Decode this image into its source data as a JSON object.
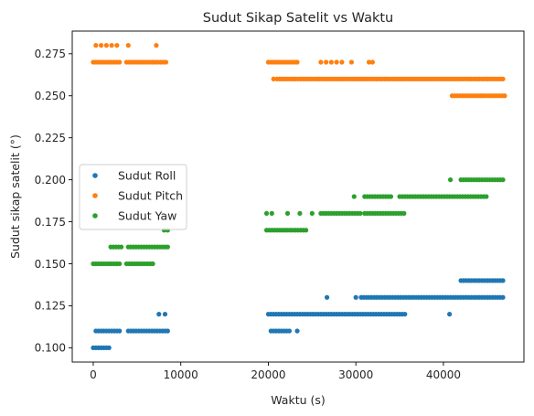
{
  "chart_data": {
    "type": "scatter",
    "title": "Sudut Sikap Satelit vs Waktu",
    "xlabel": "Waktu (s)",
    "ylabel": "Sudut sikap satelit (°)",
    "xlim": [
      -2400,
      49200
    ],
    "ylim": [
      0.0915,
      0.2885
    ],
    "xticks": [
      0,
      10000,
      20000,
      30000,
      40000
    ],
    "xtick_labels": [
      "0",
      "10000",
      "20000",
      "30000",
      "40000"
    ],
    "yticks": [
      0.1,
      0.125,
      0.15,
      0.175,
      0.2,
      0.225,
      0.25,
      0.275
    ],
    "ytick_labels": [
      "0.100",
      "0.125",
      "0.150",
      "0.175",
      "0.200",
      "0.225",
      "0.250",
      "0.275"
    ],
    "grid": false,
    "legend_position": "center-left",
    "series": [
      {
        "name": "Sudut Roll",
        "color": "#1f77b4",
        "segments": [
          {
            "x0": 0,
            "x1": 1800,
            "step": 300,
            "y": 0.1
          },
          {
            "x0": 300,
            "x1": 3200,
            "step": 300,
            "y": 0.11
          },
          {
            "x0": 4000,
            "x1": 8500,
            "step": 300,
            "y": 0.11
          },
          {
            "x0": 20000,
            "x1": 35600,
            "step": 300,
            "y": 0.12
          },
          {
            "x0": 20300,
            "x1": 22400,
            "step": 300,
            "y": 0.11
          },
          {
            "x0": 30600,
            "x1": 47000,
            "step": 300,
            "y": 0.13
          },
          {
            "x0": 42000,
            "x1": 47000,
            "step": 300,
            "y": 0.14
          }
        ],
        "points": [
          [
            7500,
            0.12
          ],
          [
            8200,
            0.12
          ],
          [
            23300,
            0.11
          ],
          [
            26700,
            0.13
          ],
          [
            30000,
            0.13
          ],
          [
            40700,
            0.12
          ]
        ]
      },
      {
        "name": "Sudut Pitch",
        "color": "#ff7f0e",
        "segments": [
          {
            "x0": 0,
            "x1": 3000,
            "step": 300,
            "y": 0.27
          },
          {
            "x0": 3800,
            "x1": 8500,
            "step": 300,
            "y": 0.27
          },
          {
            "x0": 20000,
            "x1": 23500,
            "step": 300,
            "y": 0.27
          },
          {
            "x0": 21000,
            "x1": 47000,
            "step": 300,
            "y": 0.26
          },
          {
            "x0": 41000,
            "x1": 47000,
            "step": 300,
            "y": 0.25
          }
        ],
        "points": [
          [
            300,
            0.28
          ],
          [
            900,
            0.28
          ],
          [
            1500,
            0.28
          ],
          [
            2100,
            0.28
          ],
          [
            2700,
            0.28
          ],
          [
            4000,
            0.28
          ],
          [
            7200,
            0.28
          ],
          [
            26000,
            0.27
          ],
          [
            26600,
            0.27
          ],
          [
            27200,
            0.27
          ],
          [
            27800,
            0.27
          ],
          [
            28400,
            0.27
          ],
          [
            29500,
            0.27
          ],
          [
            31500,
            0.27
          ],
          [
            31900,
            0.27
          ],
          [
            20600,
            0.26
          ]
        ]
      },
      {
        "name": "Sudut Yaw",
        "color": "#2ca02c",
        "segments": [
          {
            "x0": 0,
            "x1": 3200,
            "step": 300,
            "y": 0.15
          },
          {
            "x0": 3800,
            "x1": 6800,
            "step": 300,
            "y": 0.15
          },
          {
            "x0": 2000,
            "x1": 3200,
            "step": 300,
            "y": 0.16
          },
          {
            "x0": 4000,
            "x1": 8500,
            "step": 300,
            "y": 0.16
          },
          {
            "x0": 19800,
            "x1": 24500,
            "step": 300,
            "y": 0.17
          },
          {
            "x0": 26000,
            "x1": 30500,
            "step": 300,
            "y": 0.18
          },
          {
            "x0": 31000,
            "x1": 35600,
            "step": 300,
            "y": 0.18
          },
          {
            "x0": 31000,
            "x1": 34000,
            "step": 300,
            "y": 0.19
          },
          {
            "x0": 35000,
            "x1": 45000,
            "step": 300,
            "y": 0.19
          },
          {
            "x0": 42000,
            "x1": 47000,
            "step": 300,
            "y": 0.2
          }
        ],
        "points": [
          [
            8100,
            0.17
          ],
          [
            8500,
            0.17
          ],
          [
            19800,
            0.18
          ],
          [
            20400,
            0.18
          ],
          [
            22200,
            0.18
          ],
          [
            23600,
            0.18
          ],
          [
            25000,
            0.18
          ],
          [
            29800,
            0.19
          ],
          [
            40800,
            0.2
          ]
        ]
      }
    ]
  }
}
